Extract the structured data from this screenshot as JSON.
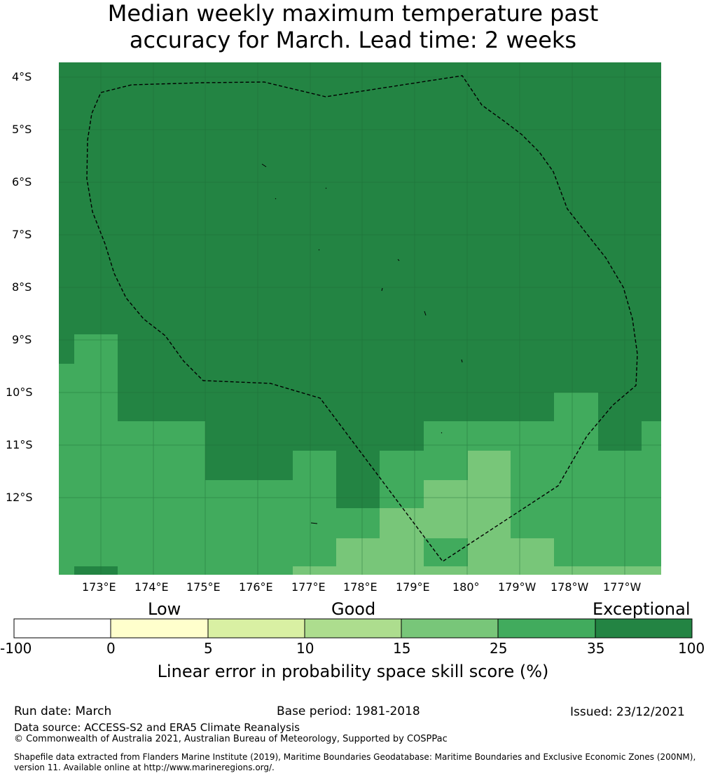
{
  "title_line1": "Median weekly maximum temperature past",
  "title_line2": "accuracy for March. Lead time: 2 weeks",
  "lat_labels": [
    "4°S",
    "5°S",
    "6°S",
    "7°S",
    "8°S",
    "9°S",
    "10°S",
    "11°S",
    "12°S"
  ],
  "lon_labels": [
    "173°E",
    "174°E",
    "175°E",
    "176°E",
    "177°E",
    "178°E",
    "179°E",
    "180°",
    "179°W",
    "178°W",
    "177°W"
  ],
  "colorbar": {
    "categories": [
      "Low",
      "Good",
      "Exceptional"
    ],
    "bounds": [
      "-100",
      "0",
      "5",
      "10",
      "15",
      "25",
      "35",
      "100"
    ],
    "colors": [
      "#ffffff",
      "#ffffcc",
      "#d9f0a3",
      "#addd8e",
      "#78c679",
      "#41ab5d",
      "#238443"
    ],
    "title": "Linear error in probability space skill score (%)"
  },
  "footer": {
    "run_date": "Run date: March",
    "base_period": "Base period: 1981-2018",
    "issued": "Issued: 23/12/2021",
    "data_source": "Data source: ACCESS-S2 and ERA5 Climate Reanalysis",
    "copyright": "© Commonwealth of Australia 2021, Australian Bureau of Meteorology, Supported by COSPPac",
    "shapefile1": "Shapefile data extracted from Flanders Marine Institute (2019), Maritime Boundaries Geodatabase: Maritime Boundaries and Exclusive Economic Zones (200NM),",
    "shapefile2": "version 11. Available online at http://www.marineregions.org/."
  }
}
